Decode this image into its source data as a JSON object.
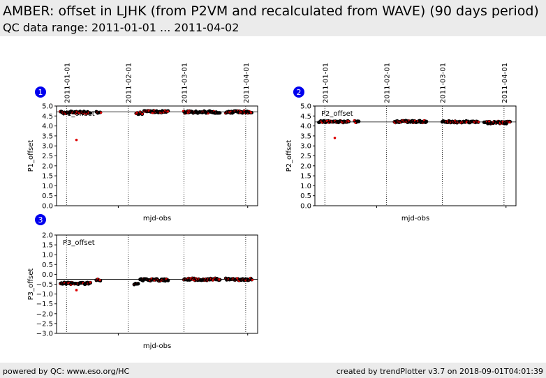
{
  "header": {
    "title": "AMBER: offset in LJHK (from P2VM and recalculated from WAVE) (90 days period)",
    "subtitle": "QC data range: 2011-01-01 ... 2011-04-02"
  },
  "footer": {
    "left": "powered by QC: www.eso.org/HC",
    "right": "created by trendPlotter v3.7 on 2018-09-01T04:01:39"
  },
  "colors": {
    "header_bg": "#ebebeb",
    "badge": "#0000ee",
    "point_fill": "#000000",
    "point_highlight": "#dd0000",
    "frame": "#000000"
  },
  "date_ticks": [
    "2011-01-01",
    "2011-02-01",
    "2011-03-01",
    "2011-04-01"
  ],
  "chart_data": [
    {
      "id": "1",
      "type": "scatter",
      "label": "P1_offset",
      "xlabel": "mjd-obs",
      "ylabel": "P1_offset",
      "ylim": [
        0.0,
        5.0
      ],
      "yticks": [
        "0.0",
        "0.5",
        "1.0",
        "1.5",
        "2.0",
        "2.5",
        "3.0",
        "3.5",
        "4.0",
        "4.5",
        "5.0"
      ],
      "reference_line": 4.7,
      "clusters": [
        {
          "x0": "2010-12-29",
          "x1": "2011-01-13",
          "y": 4.68
        },
        {
          "x0": "2011-01-16",
          "x1": "2011-01-18",
          "y": 4.69
        },
        {
          "x0": "2011-02-05",
          "x1": "2011-02-08",
          "y": 4.64
        },
        {
          "x0": "2011-02-09",
          "x1": "2011-02-21",
          "y": 4.72
        },
        {
          "x0": "2011-03-01",
          "x1": "2011-03-19",
          "y": 4.7
        },
        {
          "x0": "2011-03-22",
          "x1": "2011-04-04",
          "y": 4.7
        }
      ],
      "outliers": [
        {
          "x": "2011-01-06",
          "y": 3.3
        }
      ]
    },
    {
      "id": "2",
      "type": "scatter",
      "label": "P2_offset",
      "xlabel": "mjd-obs",
      "ylabel": "P2_offset",
      "ylim": [
        0.0,
        5.0
      ],
      "yticks": [
        "0.0",
        "0.5",
        "1.0",
        "1.5",
        "2.0",
        "2.5",
        "3.0",
        "3.5",
        "4.0",
        "4.5",
        "5.0"
      ],
      "reference_line": 4.2,
      "clusters": [
        {
          "x0": "2010-12-29",
          "x1": "2011-01-13",
          "y": 4.22
        },
        {
          "x0": "2011-01-16",
          "x1": "2011-01-18",
          "y": 4.22
        },
        {
          "x0": "2011-02-05",
          "x1": "2011-02-21",
          "y": 4.22
        },
        {
          "x0": "2011-03-01",
          "x1": "2011-03-19",
          "y": 4.2
        },
        {
          "x0": "2011-03-22",
          "x1": "2011-04-04",
          "y": 4.17
        }
      ],
      "outliers": [
        {
          "x": "2011-01-06",
          "y": 3.4
        }
      ]
    },
    {
      "id": "3",
      "type": "scatter",
      "label": "P3_offset",
      "xlabel": "mjd-obs",
      "ylabel": "P3_offset",
      "ylim": [
        -3.0,
        2.0
      ],
      "yticks": [
        "−3.0",
        "−2.5",
        "−2.0",
        "−1.5",
        "−1.0",
        "−0.5",
        "0.0",
        "0.5",
        "1.0",
        "1.5",
        "2.0"
      ],
      "reference_line": -0.25,
      "clusters": [
        {
          "x0": "2010-12-29",
          "x1": "2011-01-13",
          "y": -0.45
        },
        {
          "x0": "2011-01-16",
          "x1": "2011-01-18",
          "y": -0.3
        },
        {
          "x0": "2011-02-04",
          "x1": "2011-02-06",
          "y": -0.5
        },
        {
          "x0": "2011-02-07",
          "x1": "2011-02-21",
          "y": -0.28
        },
        {
          "x0": "2011-03-01",
          "x1": "2011-03-19",
          "y": -0.25
        },
        {
          "x0": "2011-03-22",
          "x1": "2011-04-04",
          "y": -0.25
        }
      ],
      "outliers": [
        {
          "x": "2011-01-06",
          "y": -0.8
        }
      ]
    }
  ]
}
